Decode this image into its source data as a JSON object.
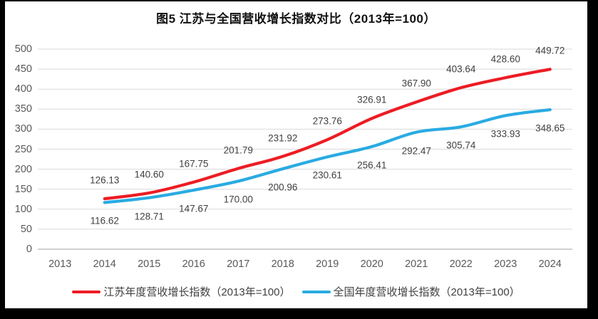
{
  "title": "图5  江苏与全国营收增长指数对比（2013年=100）",
  "colors": {
    "background_frame": "#000000",
    "chart_background": "#ffffff",
    "gridline": "#d9d9d9",
    "axis_line": "#bfbfbf",
    "axis_text": "#595959",
    "data_label_text": "#404040",
    "jiangsu_red": "#ed1c24",
    "national_blue": "#29abe2"
  },
  "chart_data": {
    "type": "line",
    "title": "图5  江苏与全国营收增长指数对比（2013年=100）",
    "categories": [
      "2013",
      "2014",
      "2015",
      "2016",
      "2017",
      "2018",
      "2019",
      "2020",
      "2021",
      "2022",
      "2023",
      "2024"
    ],
    "series": [
      {
        "name": "江苏年度营收增长指数（2013年=100）",
        "color": "#ed1c24",
        "label_position": "above",
        "values": [
          null,
          126.13,
          140.6,
          167.75,
          201.79,
          231.92,
          273.76,
          326.91,
          367.9,
          403.64,
          428.6,
          449.72
        ],
        "labels": [
          "",
          "126.13",
          "140.60",
          "167.75",
          "201.79",
          "231.92",
          "273.76",
          "326.91",
          "367.90",
          "403.64",
          "428.60",
          "449.72"
        ]
      },
      {
        "name": "全国年度营收增长指数（2013年=100）",
        "color": "#29abe2",
        "label_position": "below",
        "values": [
          null,
          116.62,
          128.71,
          147.67,
          170.0,
          200.96,
          230.61,
          256.41,
          292.47,
          305.74,
          333.93,
          348.65
        ],
        "labels": [
          "",
          "116.62",
          "128.71",
          "147.67",
          "170.00",
          "200.96",
          "230.61",
          "256.41",
          "292.47",
          "305.74",
          "333.93",
          "348.65"
        ]
      }
    ],
    "xlabel": "",
    "ylabel": "",
    "ylim": [
      0,
      500
    ],
    "yticks": [
      0,
      50,
      100,
      150,
      200,
      250,
      300,
      350,
      400,
      450,
      500
    ],
    "grid": "horizontal",
    "legend_position": "bottom",
    "line_smoothing": true
  }
}
